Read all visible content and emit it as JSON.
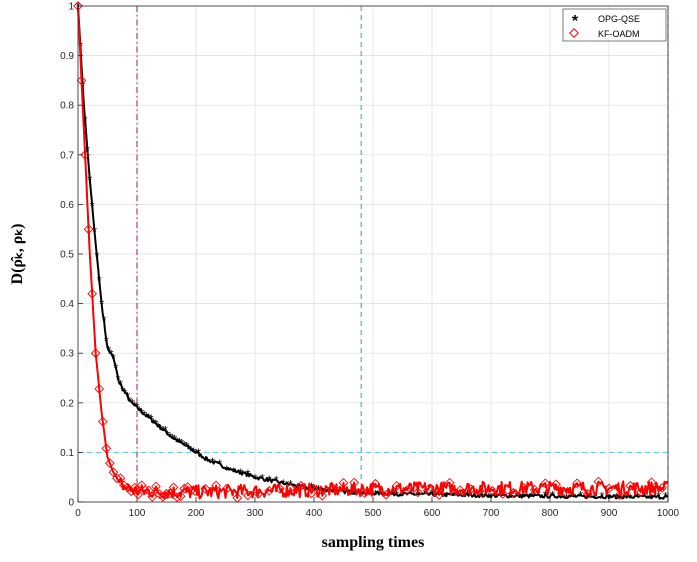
{
  "chart_data": {
    "type": "line",
    "title": "",
    "xlabel": "sampling times",
    "ylabel": "D(ρ̂ₖ, ρₖ)",
    "xlim": [
      0,
      1000
    ],
    "ylim": [
      0,
      1
    ],
    "xticks": [
      0,
      100,
      200,
      300,
      400,
      500,
      600,
      700,
      800,
      900,
      1000
    ],
    "yticks": [
      0,
      0.1,
      0.2,
      0.3,
      0.4,
      0.5,
      0.6,
      0.7,
      0.8,
      0.9,
      1
    ],
    "xtick_labels": [
      "0",
      "100",
      "200",
      "300",
      "400",
      "500",
      "600",
      "700",
      "800",
      "900",
      "1000"
    ],
    "ytick_labels": [
      "0",
      "0.1",
      "0.2",
      "0.3",
      "0.4",
      "0.5",
      "0.6",
      "0.7",
      "0.8",
      "0.9",
      "1"
    ],
    "grid": true,
    "legend_position": "top-right",
    "series": [
      {
        "name": "OPG-QSE",
        "color": "#000000",
        "marker": "asterisk",
        "x": [
          0,
          10,
          20,
          30,
          40,
          50,
          60,
          70,
          80,
          90,
          100,
          120,
          140,
          160,
          180,
          200,
          220,
          240,
          260,
          280,
          300,
          320,
          340,
          360,
          380,
          400,
          430,
          460,
          500,
          550,
          600,
          650,
          700,
          750,
          800,
          850,
          900,
          950,
          1000
        ],
        "y": [
          1.0,
          0.8,
          0.65,
          0.52,
          0.4,
          0.31,
          0.29,
          0.24,
          0.22,
          0.2,
          0.19,
          0.17,
          0.15,
          0.13,
          0.115,
          0.1,
          0.085,
          0.075,
          0.065,
          0.058,
          0.05,
          0.045,
          0.04,
          0.035,
          0.03,
          0.027,
          0.023,
          0.02,
          0.018,
          0.016,
          0.015,
          0.014,
          0.013,
          0.012,
          0.012,
          0.011,
          0.011,
          0.01,
          0.01
        ]
      },
      {
        "name": "KF-OADM",
        "color": "#ff0000",
        "marker": "diamond",
        "x": [
          0,
          10,
          20,
          30,
          40,
          50,
          60,
          70,
          80,
          90,
          100,
          150,
          200,
          300,
          400,
          500,
          600,
          700,
          800,
          900,
          1000
        ],
        "y": [
          1.0,
          0.75,
          0.5,
          0.3,
          0.18,
          0.09,
          0.06,
          0.04,
          0.03,
          0.025,
          0.022,
          0.02,
          0.02,
          0.022,
          0.024,
          0.026,
          0.027,
          0.028,
          0.028,
          0.028,
          0.028
        ]
      }
    ],
    "reference_lines": [
      {
        "orientation": "vertical",
        "value": 100,
        "color": "#a31f34",
        "style": "dash-dot"
      },
      {
        "orientation": "vertical",
        "value": 480,
        "color": "#1ca3d6",
        "style": "dashed"
      },
      {
        "orientation": "vertical",
        "value": 1000,
        "color": "#e0662a",
        "style": "dashed"
      },
      {
        "orientation": "horizontal",
        "value": 0.1,
        "color": "#55c8ee",
        "style": "dashed"
      }
    ]
  }
}
